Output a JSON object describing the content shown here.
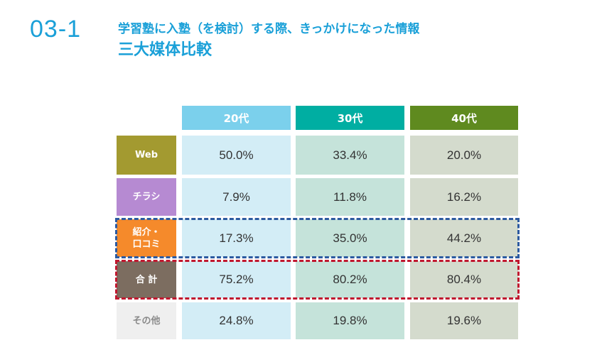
{
  "header": {
    "section_number": "03-1",
    "title_line1": "学習塾に入塾（を検討）する際、きっかけになった情報",
    "title_line2": "三大媒体比較"
  },
  "chart_data": {
    "type": "table",
    "columns": [
      {
        "label": "20代",
        "color": "#7bd0ec"
      },
      {
        "label": "30代",
        "color": "#00aea2"
      },
      {
        "label": "40代",
        "color": "#5f8a1f"
      }
    ],
    "rows": [
      {
        "label": "Web",
        "color": "#a39a30",
        "text_color": "#ffffff",
        "values": [
          "50.0%",
          "33.4%",
          "20.0%"
        ]
      },
      {
        "label": "チラシ",
        "color": "#b68ad2",
        "text_color": "#ffffff",
        "values": [
          "7.9%",
          "11.8%",
          "16.2%"
        ]
      },
      {
        "label": "紹介・\n口コミ",
        "color": "#f58a2b",
        "text_color": "#ffffff",
        "values": [
          "17.3%",
          "35.0%",
          "44.2%"
        ]
      },
      {
        "label": "合 計",
        "color": "#7c6d60",
        "text_color": "#ffffff",
        "values": [
          "75.2%",
          "80.2%",
          "80.4%"
        ]
      },
      {
        "label": "その他",
        "color": "#efefef",
        "text_color": "#8a8a8a",
        "values": [
          "24.8%",
          "19.8%",
          "19.6%"
        ]
      }
    ],
    "highlights": [
      {
        "row": "紹介・口コミ",
        "color": "#2c5aa0",
        "style": "dashed"
      },
      {
        "row": "合 計",
        "color": "#c0182f",
        "style": "dashed"
      }
    ]
  }
}
